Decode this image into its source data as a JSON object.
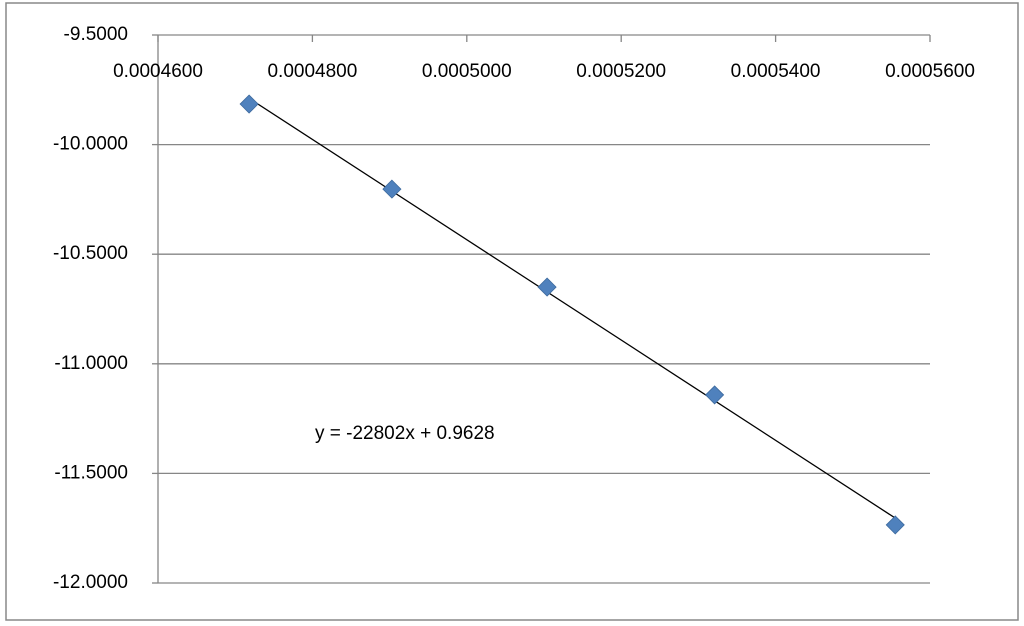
{
  "chart_data": {
    "type": "scatter",
    "series": [
      {
        "color": "#4f81bd",
        "x": [
          0.0004718,
          0.0004903,
          0.0005104,
          0.0005321,
          0.0005555
        ],
        "values": [
          -9.815,
          -10.203,
          -10.65,
          -11.142,
          -11.735
        ]
      }
    ],
    "trendline": true,
    "annotation": "y = -22802x + 0.9628",
    "xlim": [
      0.00046,
      0.00056
    ],
    "xticks": [
      {
        "value": 0.00046,
        "label": "0.0004600"
      },
      {
        "value": 0.00048,
        "label": "0.0004800"
      },
      {
        "value": 0.0005,
        "label": "0.0005000"
      },
      {
        "value": 0.00052,
        "label": "0.0005200"
      },
      {
        "value": 0.00054,
        "label": "0.0005400"
      },
      {
        "value": 0.00056,
        "label": "0.0005600"
      }
    ],
    "ylim": [
      -12,
      -9.5
    ],
    "yticks": [
      {
        "value": -9.5,
        "label": "-9.5000"
      },
      {
        "value": -10,
        "label": "-10.0000"
      },
      {
        "value": -10.5,
        "label": "-10.5000"
      },
      {
        "value": -11,
        "label": "-11.0000"
      },
      {
        "value": -11.5,
        "label": "-11.5000"
      },
      {
        "value": -12,
        "label": "-12.0000"
      }
    ],
    "grid": true
  }
}
